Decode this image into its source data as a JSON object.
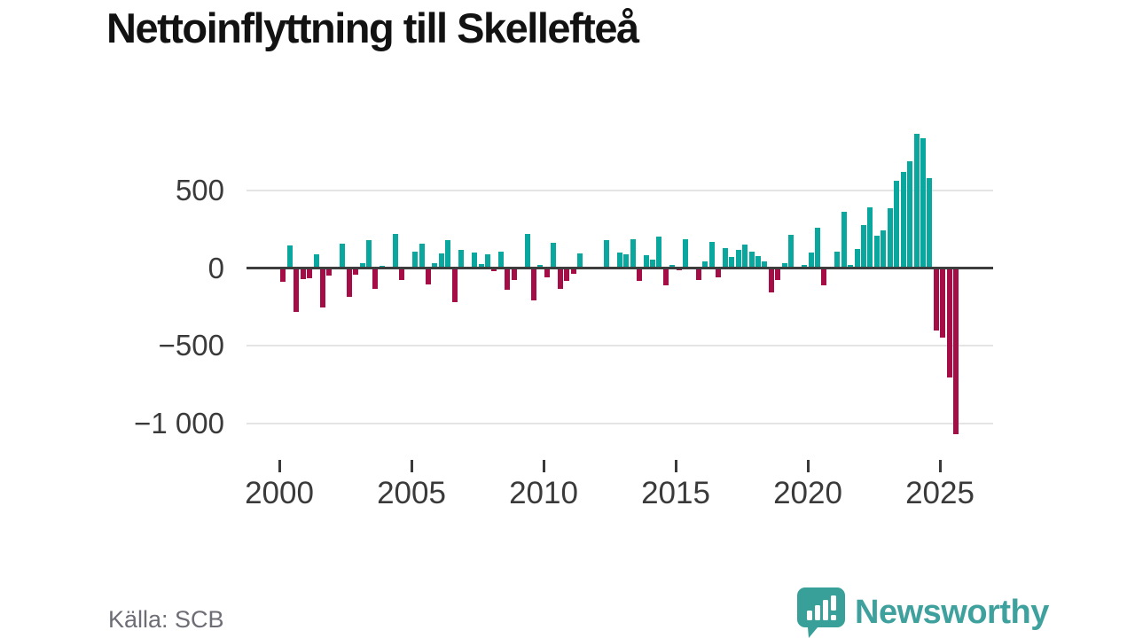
{
  "title": "Nettoinflyttning till Skellefteå",
  "source": "Källa: SCB",
  "brand": {
    "name": "Newsworthy"
  },
  "chart_data": {
    "type": "bar",
    "title": "Nettoinflyttning till Skellefteå",
    "frequency": "quarterly",
    "start_period": "2000 Q1",
    "end_period": "2025 Q3",
    "grid": "horizontal",
    "legend": "none",
    "ylim": [
      -1100,
      900
    ],
    "y_ticks": [
      500,
      0,
      -500,
      -1000
    ],
    "y_tick_labels": [
      "500",
      "0",
      "−500",
      "−1 000"
    ],
    "x_ticks": [
      2000,
      2005,
      2010,
      2015,
      2020,
      2025
    ],
    "x_tick_labels": [
      "2000",
      "2005",
      "2010",
      "2015",
      "2020",
      "2025"
    ],
    "colors": {
      "positive": "#0aa79e",
      "negative": "#a50d47",
      "axis": "#3d3d3d",
      "grid": "#e4e4e4"
    },
    "values": [
      -90,
      148,
      -283,
      -70,
      -66,
      86,
      -251,
      -51,
      0,
      158,
      -185,
      -41,
      31,
      177,
      -133,
      15,
      0,
      221,
      -76,
      0,
      107,
      158,
      -108,
      31,
      95,
      177,
      -217,
      114,
      0,
      101,
      25,
      86,
      -19,
      105,
      -137,
      -76,
      0,
      221,
      -209,
      19,
      -57,
      164,
      -133,
      -80,
      -38,
      95,
      0,
      0,
      0,
      181,
      0,
      101,
      91,
      188,
      -84,
      81,
      56,
      202,
      -112,
      21,
      -13,
      183,
      0,
      -76,
      44,
      169,
      -57,
      131,
      71,
      118,
      150,
      103,
      75,
      44,
      -156,
      -76,
      31,
      212,
      0,
      21,
      97,
      258,
      -112,
      0,
      106,
      363,
      21,
      124,
      277,
      391,
      209,
      245,
      386,
      561,
      618,
      686,
      862,
      834,
      580,
      -403,
      -450,
      -703,
      -1068
    ]
  }
}
